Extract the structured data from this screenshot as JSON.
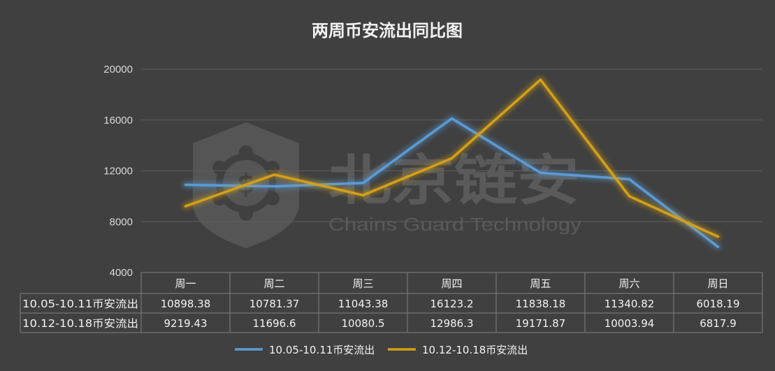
{
  "watermark": {
    "name": "北京链安",
    "subtitle": "Chains Guard Technology"
  },
  "chart_data": {
    "type": "line",
    "title": "两周币安流出同比图",
    "xlabel": "",
    "ylabel": "",
    "ylim": [
      4000,
      20000
    ],
    "yticks": [
      4000,
      8000,
      12000,
      16000,
      20000
    ],
    "grid": true,
    "legend_position": "bottom",
    "categories": [
      "周一",
      "周二",
      "周三",
      "周四",
      "周五",
      "周六",
      "周日"
    ],
    "series": [
      {
        "name": "10.05-10.11币安流出",
        "color": "#5b9bd5",
        "values": [
          10898.38,
          10781.37,
          11043.38,
          16123.2,
          11838.18,
          11340.82,
          6018.19
        ]
      },
      {
        "name": "10.12-10.18币安流出",
        "color": "#d4a017",
        "values": [
          9219.43,
          11696.6,
          10080.5,
          12986.3,
          19171.87,
          10003.94,
          6817.9
        ]
      }
    ],
    "data_table": {
      "rows": [
        {
          "label": "10.05-10.11币安流出",
          "cells": [
            "10898.38",
            "10781.37",
            "11043.38",
            "16123.2",
            "11838.18",
            "11340.82",
            "6018.19"
          ]
        },
        {
          "label": "10.12-10.18币安流出",
          "cells": [
            "9219.43",
            "11696.6",
            "10080.5",
            "12986.3",
            "19171.87",
            "10003.94",
            "6817.9"
          ]
        }
      ]
    }
  }
}
